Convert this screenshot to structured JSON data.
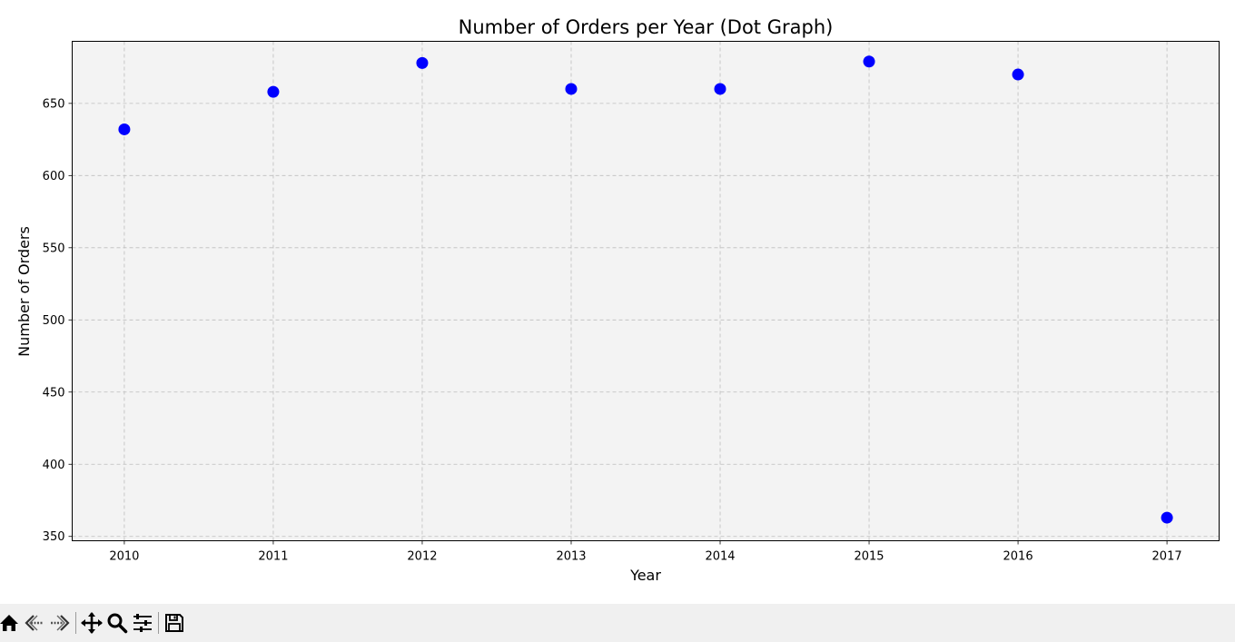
{
  "chart_data": {
    "type": "scatter",
    "title": "Number of Orders per Year (Dot Graph)",
    "xlabel": "Year",
    "ylabel": "Number of Orders",
    "x": [
      2010,
      2011,
      2012,
      2013,
      2014,
      2015,
      2016,
      2017
    ],
    "y": [
      632,
      658,
      678,
      660,
      660,
      679,
      670,
      363
    ],
    "xlim": [
      2009.65,
      2017.35
    ],
    "ylim": [
      347,
      693
    ],
    "xticks": [
      "2010",
      "2011",
      "2012",
      "2013",
      "2014",
      "2015",
      "2016",
      "2017"
    ],
    "yticks": [
      "350",
      "400",
      "450",
      "500",
      "550",
      "600",
      "650"
    ],
    "grid": true,
    "marker_color": "#0000ff",
    "plot_background": "#f3f3f3"
  },
  "toolbar": {
    "buttons": [
      {
        "icon": "home-icon"
      },
      {
        "icon": "back-arrow-icon"
      },
      {
        "icon": "forward-arrow-icon"
      },
      {
        "icon": "pan-move-icon"
      },
      {
        "icon": "zoom-magnifier-icon"
      },
      {
        "icon": "configure-subplots-icon"
      },
      {
        "icon": "save-floppy-icon"
      }
    ]
  }
}
